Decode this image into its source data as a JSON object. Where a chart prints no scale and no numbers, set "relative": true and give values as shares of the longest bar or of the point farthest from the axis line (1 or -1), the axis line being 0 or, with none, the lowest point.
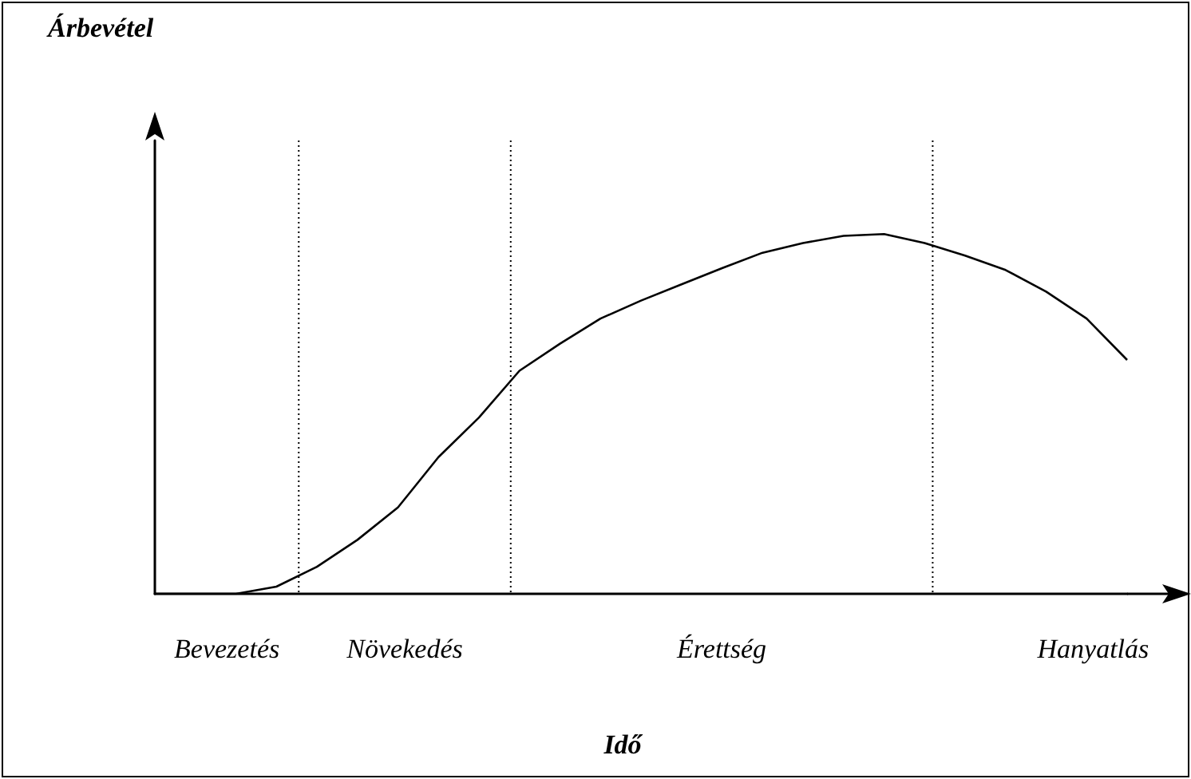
{
  "chart_data": {
    "type": "line",
    "relative": true,
    "tick_labels": false,
    "grid": false,
    "marker": "none",
    "line_style": "solid",
    "categories": [
      null,
      null,
      null,
      null,
      null,
      null,
      null,
      null,
      null,
      null,
      null,
      null,
      null,
      null,
      null,
      null,
      null,
      null,
      null,
      null,
      null,
      null,
      null,
      null,
      null
    ],
    "series": [
      {
        "color": "#000000",
        "values": [
          0,
          0,
          0,
          0.02,
          0.075,
          0.15,
          0.24,
          0.38,
          0.49,
          0.62,
          0.695,
          0.765,
          0.815,
          0.86,
          0.905,
          0.948,
          0.975,
          0.995,
          1,
          0.975,
          0.94,
          0.9,
          0.84,
          0.765,
          0.65
        ]
      }
    ],
    "annotations": [
      "Árbevétel",
      "Bevezetés",
      "Növekedés",
      "Érettség",
      "Hanyatlás",
      "Idő"
    ]
  }
}
